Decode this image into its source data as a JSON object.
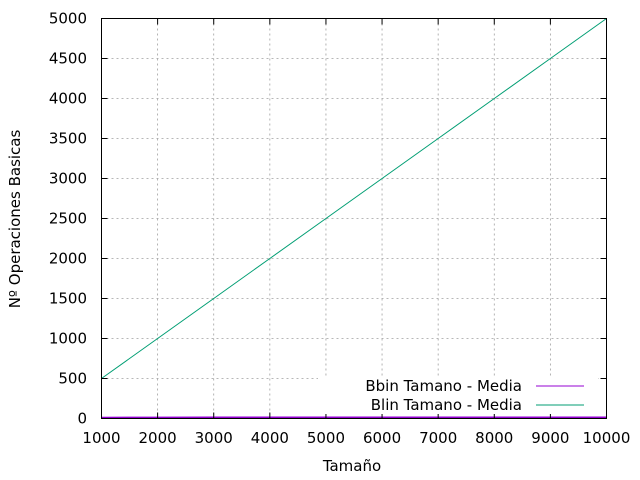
{
  "chart_data": {
    "type": "line",
    "title": "",
    "xlabel": "Tamaño",
    "ylabel": "Nº Operaciones Basicas",
    "xlim": [
      1000,
      10000
    ],
    "ylim": [
      0,
      5000
    ],
    "x_ticks": [
      1000,
      2000,
      3000,
      4000,
      5000,
      6000,
      7000,
      8000,
      9000,
      10000
    ],
    "y_ticks": [
      0,
      500,
      1000,
      1500,
      2000,
      2500,
      3000,
      3500,
      4000,
      4500,
      5000
    ],
    "x_tick_labels": [
      "1000",
      "2000",
      "3000",
      "4000",
      "5000",
      "6000",
      "7000",
      "8000",
      "9000",
      "10000"
    ],
    "y_tick_labels": [
      "0",
      "500",
      "1000",
      "1500",
      "2000",
      "2500",
      "3000",
      "3500",
      "4000",
      "4500",
      "5000"
    ],
    "grid": true,
    "legend_position": "bottom-right",
    "series": [
      {
        "name": "Bbin Tamano - Media",
        "color": "#9400d3",
        "x": [
          1000,
          2000,
          3000,
          4000,
          5000,
          6000,
          7000,
          8000,
          9000,
          10000
        ],
        "y": [
          10,
          11,
          12,
          12,
          12,
          13,
          13,
          13,
          13,
          13
        ]
      },
      {
        "name": "Blin Tamano - Media",
        "color": "#009e73",
        "x": [
          1000,
          2000,
          3000,
          4000,
          5000,
          6000,
          7000,
          8000,
          9000,
          10000
        ],
        "y": [
          500,
          1000,
          1500,
          2000,
          2500,
          3000,
          3500,
          4000,
          4500,
          5000
        ]
      }
    ]
  }
}
